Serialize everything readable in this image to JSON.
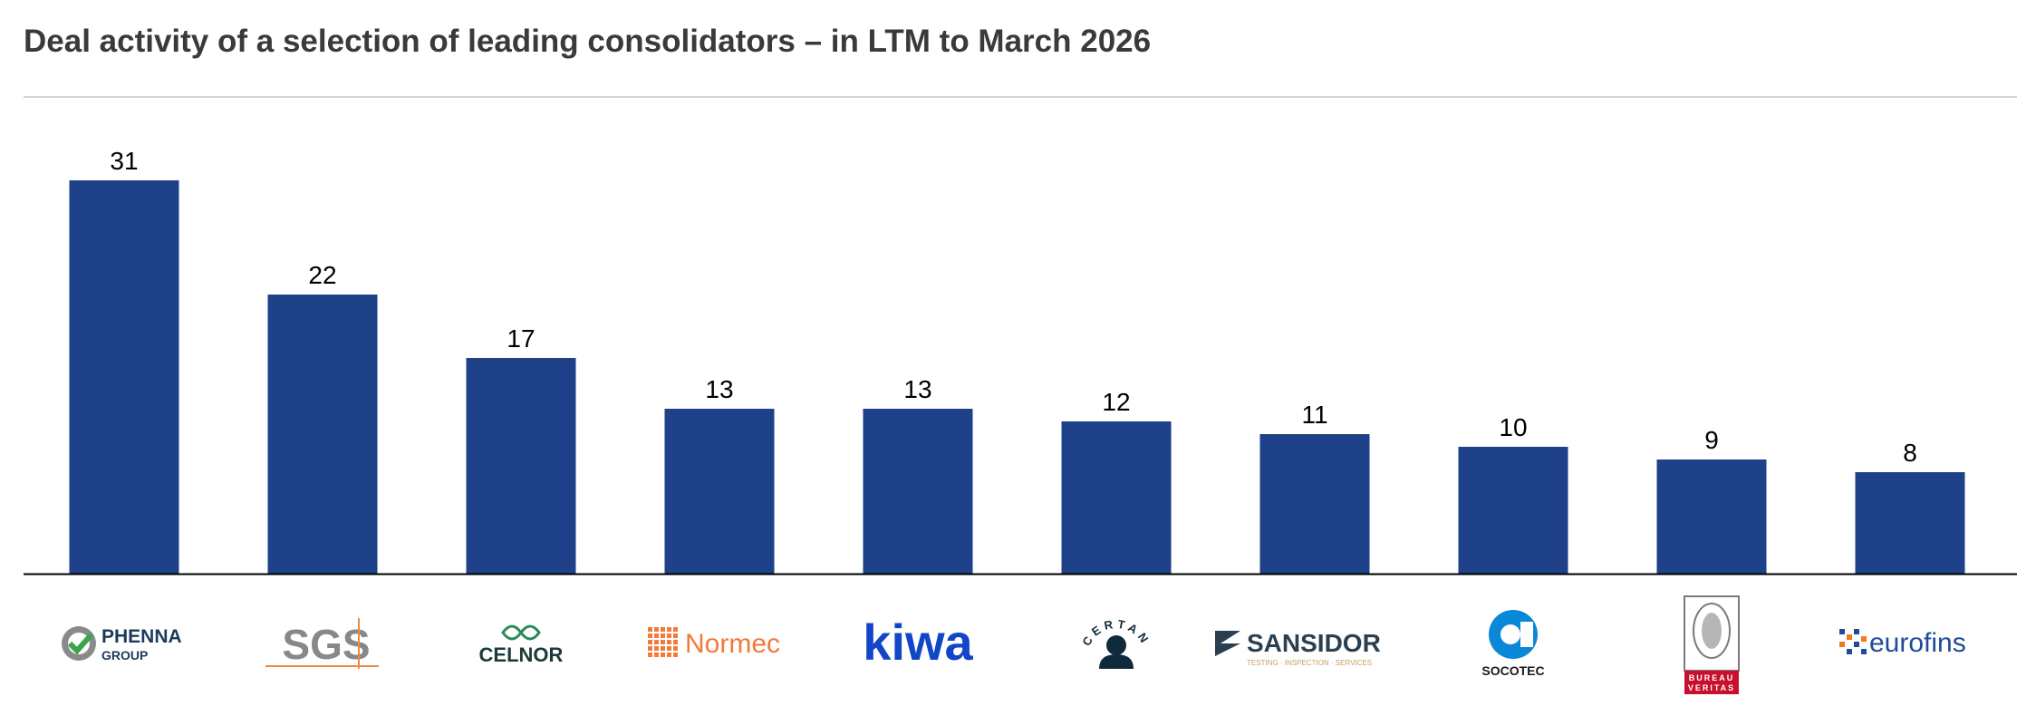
{
  "title": "Deal activity of a selection of leading consolidators – in LTM to March 2026",
  "colors": {
    "bar": "#1f4189",
    "axis": "#000000",
    "rule": "#d4d4d4"
  },
  "chart_data": {
    "type": "bar",
    "title": "Deal activity of a selection of leading consolidators – in LTM to March 2026",
    "xlabel": "",
    "ylabel": "",
    "ylim": [
      0,
      31
    ],
    "grid": false,
    "categories": [
      "Phenna Group",
      "SGS",
      "Celnor",
      "Normec",
      "Kiwa",
      "Certania",
      "Sansidor",
      "Socotec",
      "Bureau Veritas",
      "Eurofins"
    ],
    "values": [
      31,
      22,
      17,
      13,
      13,
      12,
      11,
      10,
      9,
      8
    ],
    "data_labels": [
      "31",
      "22",
      "17",
      "13",
      "13",
      "12",
      "11",
      "10",
      "9",
      "8"
    ]
  },
  "logos": [
    {
      "name": "phenna-group-logo",
      "icon": "check-badge-icon",
      "line1": "PHENNA",
      "line2": "GROUP",
      "color": "#1e3a5a",
      "accent": "#3aa64a"
    },
    {
      "name": "sgs-logo",
      "line1": "SGS",
      "color": "#888888",
      "accent": "#f08a3a"
    },
    {
      "name": "celnor-logo",
      "icon": "knot-icon",
      "line1": "CELNOR",
      "color": "#1b3b3a",
      "accent": "#2a8a5a"
    },
    {
      "name": "normec-logo",
      "icon": "grid-squares-icon",
      "line1": "Normec",
      "color": "#f27a3a"
    },
    {
      "name": "kiwa-logo",
      "line1": "kiwa",
      "color": "#1246c8"
    },
    {
      "name": "certania-logo",
      "icon": "person-icon",
      "line1": "CERTANIA",
      "color": "#0f2a3a"
    },
    {
      "name": "sansidor-logo",
      "icon": "s-shield-icon",
      "line1": "SANSIDOR",
      "line2": "TESTING · INSPECTION · SERVICES",
      "color": "#2a3f52",
      "accent": "#c8a060"
    },
    {
      "name": "socotec-logo",
      "icon": "ring-icon",
      "line1": "SOCOTEC",
      "color": "#0a88d8",
      "accent": "#1a1a1a"
    },
    {
      "name": "bureau-veritas-logo",
      "icon": "seal-icon",
      "line1": "BUREAU",
      "line2": "VERITAS",
      "color": "#7a7a7a",
      "accent": "#c8102e"
    },
    {
      "name": "eurofins-logo",
      "icon": "dots-icon",
      "line1": "eurofins",
      "color": "#1e4c9a",
      "accent": "#f27a1a"
    }
  ]
}
